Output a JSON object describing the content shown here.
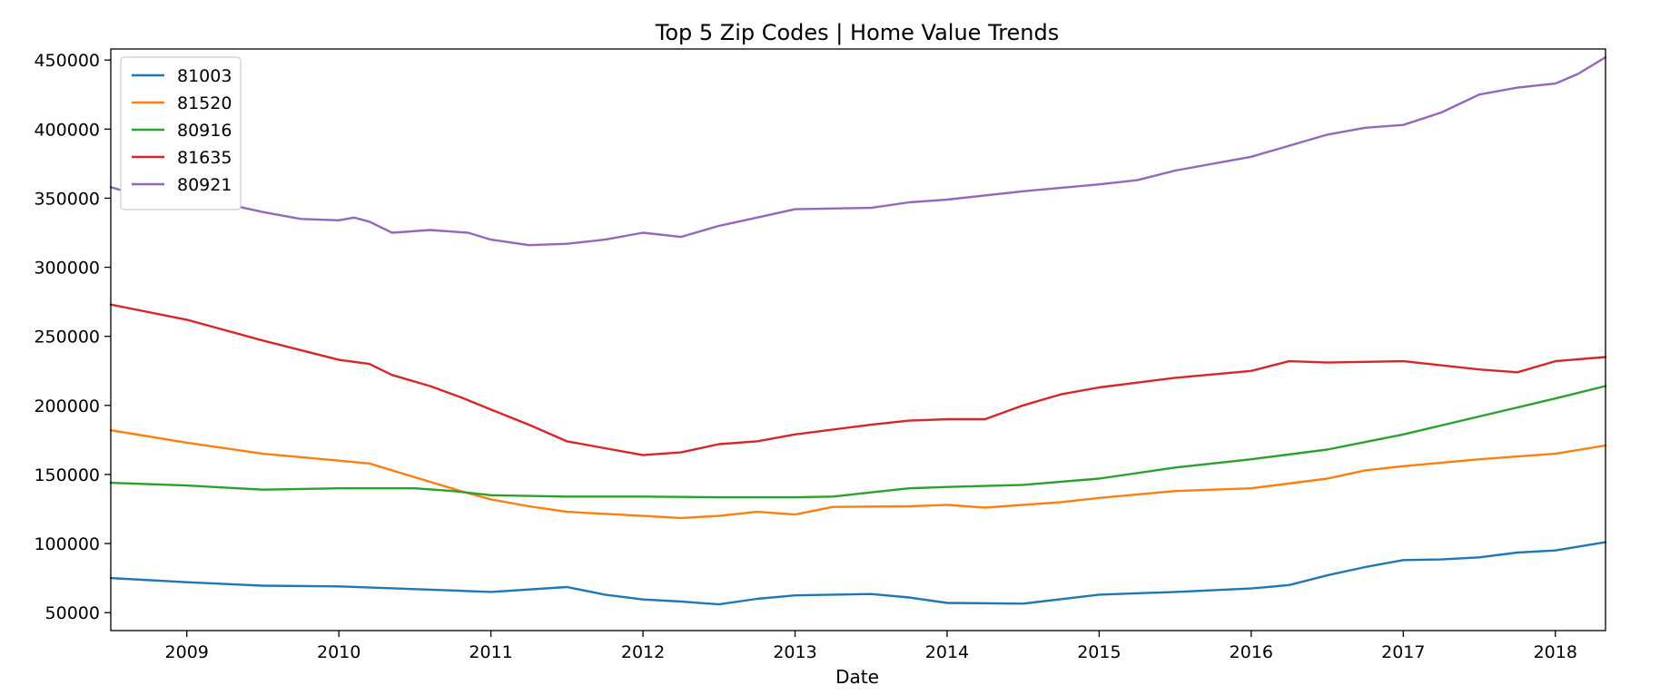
{
  "chart_data": {
    "type": "line",
    "title": "Top 5 Zip Codes | Home Value Trends",
    "xlabel": "Date",
    "ylabel": "",
    "x_range": [
      2008.5,
      2018.33
    ],
    "ylim": [
      37000,
      458000
    ],
    "x_ticks": [
      {
        "value": 2009,
        "label": "2009"
      },
      {
        "value": 2010,
        "label": "2010"
      },
      {
        "value": 2011,
        "label": "2011"
      },
      {
        "value": 2012,
        "label": "2012"
      },
      {
        "value": 2013,
        "label": "2013"
      },
      {
        "value": 2014,
        "label": "2014"
      },
      {
        "value": 2015,
        "label": "2015"
      },
      {
        "value": 2016,
        "label": "2016"
      },
      {
        "value": 2017,
        "label": "2017"
      },
      {
        "value": 2018,
        "label": "2018"
      }
    ],
    "y_ticks": [
      {
        "value": 50000,
        "label": "50000"
      },
      {
        "value": 100000,
        "label": "100000"
      },
      {
        "value": 150000,
        "label": "150000"
      },
      {
        "value": 200000,
        "label": "200000"
      },
      {
        "value": 250000,
        "label": "250000"
      },
      {
        "value": 300000,
        "label": "300000"
      },
      {
        "value": 350000,
        "label": "350000"
      },
      {
        "value": 400000,
        "label": "400000"
      },
      {
        "value": 450000,
        "label": "450000"
      }
    ],
    "grid": false,
    "legend_position": "top-left",
    "series": [
      {
        "name": "81003",
        "color": "#1f77b4",
        "points": [
          [
            2008.5,
            75000
          ],
          [
            2009.0,
            72000
          ],
          [
            2009.5,
            69500
          ],
          [
            2010.0,
            69000
          ],
          [
            2010.5,
            67000
          ],
          [
            2011.0,
            65000
          ],
          [
            2011.5,
            68500
          ],
          [
            2011.75,
            63000
          ],
          [
            2012.0,
            59500
          ],
          [
            2012.25,
            58000
          ],
          [
            2012.5,
            56000
          ],
          [
            2012.75,
            60000
          ],
          [
            2013.0,
            62500
          ],
          [
            2013.5,
            63500
          ],
          [
            2013.75,
            61000
          ],
          [
            2014.0,
            57000
          ],
          [
            2014.5,
            56500
          ],
          [
            2015.0,
            63000
          ],
          [
            2015.5,
            65000
          ],
          [
            2016.0,
            67500
          ],
          [
            2016.25,
            70000
          ],
          [
            2016.5,
            77000
          ],
          [
            2016.75,
            83000
          ],
          [
            2017.0,
            88000
          ],
          [
            2017.25,
            88500
          ],
          [
            2017.5,
            90000
          ],
          [
            2017.75,
            93500
          ],
          [
            2018.0,
            95000
          ],
          [
            2018.33,
            101000
          ]
        ]
      },
      {
        "name": "81520",
        "color": "#ff7f0e",
        "points": [
          [
            2008.5,
            182000
          ],
          [
            2009.0,
            173000
          ],
          [
            2009.5,
            165000
          ],
          [
            2010.0,
            160000
          ],
          [
            2010.2,
            158000
          ],
          [
            2010.5,
            148000
          ],
          [
            2010.8,
            138000
          ],
          [
            2011.0,
            132000
          ],
          [
            2011.25,
            127000
          ],
          [
            2011.5,
            123000
          ],
          [
            2012.0,
            120000
          ],
          [
            2012.25,
            118500
          ],
          [
            2012.5,
            120000
          ],
          [
            2012.75,
            123000
          ],
          [
            2013.0,
            121000
          ],
          [
            2013.25,
            126500
          ],
          [
            2013.75,
            127000
          ],
          [
            2014.0,
            128000
          ],
          [
            2014.25,
            126000
          ],
          [
            2014.75,
            130000
          ],
          [
            2015.0,
            133000
          ],
          [
            2015.5,
            138000
          ],
          [
            2016.0,
            140000
          ],
          [
            2016.5,
            147000
          ],
          [
            2016.75,
            153000
          ],
          [
            2017.0,
            156000
          ],
          [
            2017.5,
            161000
          ],
          [
            2018.0,
            165000
          ],
          [
            2018.33,
            171000
          ]
        ]
      },
      {
        "name": "80916",
        "color": "#2ca02c",
        "points": [
          [
            2008.5,
            144000
          ],
          [
            2009.0,
            142000
          ],
          [
            2009.5,
            139000
          ],
          [
            2010.0,
            140000
          ],
          [
            2010.5,
            140000
          ],
          [
            2010.75,
            138000
          ],
          [
            2011.0,
            135000
          ],
          [
            2011.5,
            134000
          ],
          [
            2012.0,
            134000
          ],
          [
            2012.5,
            133500
          ],
          [
            2013.0,
            133500
          ],
          [
            2013.25,
            134000
          ],
          [
            2013.5,
            137000
          ],
          [
            2013.75,
            140000
          ],
          [
            2014.0,
            141000
          ],
          [
            2014.5,
            142500
          ],
          [
            2015.0,
            147000
          ],
          [
            2015.5,
            155000
          ],
          [
            2016.0,
            161000
          ],
          [
            2016.5,
            168000
          ],
          [
            2017.0,
            179000
          ],
          [
            2017.5,
            192000
          ],
          [
            2018.0,
            205000
          ],
          [
            2018.33,
            214000
          ]
        ]
      },
      {
        "name": "81635",
        "color": "#d62728",
        "points": [
          [
            2008.5,
            273000
          ],
          [
            2009.0,
            262000
          ],
          [
            2009.5,
            247000
          ],
          [
            2009.75,
            240000
          ],
          [
            2010.0,
            233000
          ],
          [
            2010.2,
            230000
          ],
          [
            2010.35,
            222000
          ],
          [
            2010.6,
            214000
          ],
          [
            2010.8,
            206000
          ],
          [
            2011.0,
            197000
          ],
          [
            2011.25,
            186000
          ],
          [
            2011.5,
            174000
          ],
          [
            2011.75,
            169000
          ],
          [
            2012.0,
            164000
          ],
          [
            2012.25,
            166000
          ],
          [
            2012.5,
            172000
          ],
          [
            2012.75,
            174000
          ],
          [
            2013.0,
            179000
          ],
          [
            2013.5,
            186000
          ],
          [
            2013.75,
            189000
          ],
          [
            2014.0,
            190000
          ],
          [
            2014.25,
            190000
          ],
          [
            2014.5,
            200000
          ],
          [
            2014.75,
            208000
          ],
          [
            2015.0,
            213000
          ],
          [
            2015.5,
            220000
          ],
          [
            2016.0,
            225000
          ],
          [
            2016.25,
            232000
          ],
          [
            2016.5,
            231000
          ],
          [
            2017.0,
            232000
          ],
          [
            2017.5,
            226000
          ],
          [
            2017.75,
            224000
          ],
          [
            2018.0,
            232000
          ],
          [
            2018.33,
            235000
          ]
        ]
      },
      {
        "name": "80921",
        "color": "#9467bd",
        "points": [
          [
            2008.5,
            358000
          ],
          [
            2008.75,
            350000
          ],
          [
            2009.0,
            344000
          ],
          [
            2009.25,
            346000
          ],
          [
            2009.5,
            340000
          ],
          [
            2009.75,
            335000
          ],
          [
            2010.0,
            334000
          ],
          [
            2010.1,
            336000
          ],
          [
            2010.2,
            333000
          ],
          [
            2010.35,
            325000
          ],
          [
            2010.6,
            327000
          ],
          [
            2010.85,
            325000
          ],
          [
            2011.0,
            320000
          ],
          [
            2011.25,
            316000
          ],
          [
            2011.5,
            317000
          ],
          [
            2011.75,
            320000
          ],
          [
            2012.0,
            325000
          ],
          [
            2012.25,
            322000
          ],
          [
            2012.5,
            330000
          ],
          [
            2012.75,
            336000
          ],
          [
            2013.0,
            342000
          ],
          [
            2013.5,
            343000
          ],
          [
            2013.75,
            347000
          ],
          [
            2014.0,
            349000
          ],
          [
            2014.5,
            355000
          ],
          [
            2015.0,
            360000
          ],
          [
            2015.25,
            363000
          ],
          [
            2015.5,
            370000
          ],
          [
            2016.0,
            380000
          ],
          [
            2016.5,
            396000
          ],
          [
            2016.75,
            401000
          ],
          [
            2017.0,
            403000
          ],
          [
            2017.25,
            412000
          ],
          [
            2017.5,
            425000
          ],
          [
            2017.75,
            430000
          ],
          [
            2018.0,
            433000
          ],
          [
            2018.15,
            440000
          ],
          [
            2018.33,
            452000
          ]
        ]
      }
    ]
  }
}
